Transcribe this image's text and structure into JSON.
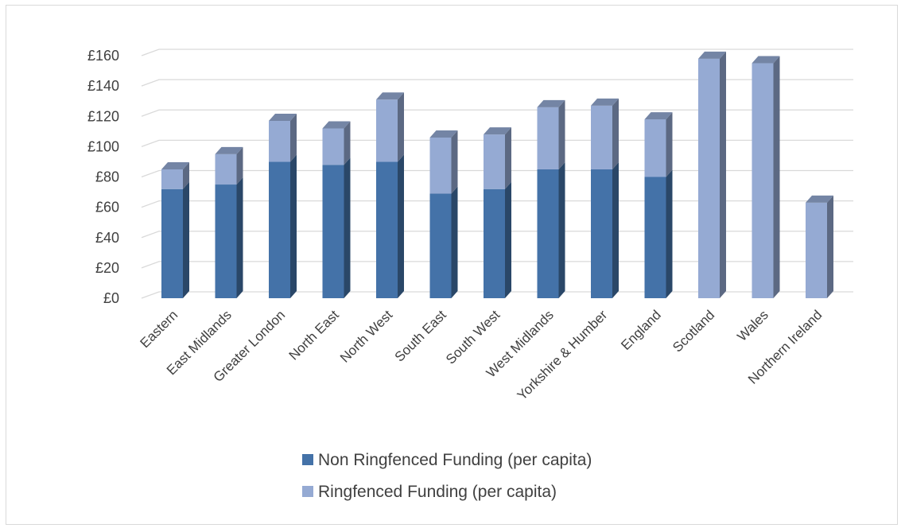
{
  "chart_data": {
    "type": "bar",
    "stacked": true,
    "three_d": true,
    "categories": [
      "Eastern",
      "East Midlands",
      "Greater London",
      "North East",
      "North West",
      "South East",
      "South West",
      "West Midlands",
      "Yorkshire & Humber",
      "England",
      "Scotland",
      "Wales",
      "Northern Ireland"
    ],
    "series": [
      {
        "name": "Non Ringfenced Funding (per capita)",
        "color": "#4472a8",
        "values": [
          72,
          75,
          90,
          88,
          90,
          69,
          72,
          85,
          85,
          80,
          0,
          0,
          0
        ]
      },
      {
        "name": "Ringfenced Funding (per capita)",
        "color": "#95aad3",
        "values": [
          13,
          20,
          27,
          24,
          41,
          37,
          36,
          41,
          42,
          38,
          158,
          155,
          63
        ]
      }
    ],
    "y_ticks": [
      "£0",
      "£20",
      "£40",
      "£60",
      "£80",
      "£100",
      "£120",
      "£140",
      "£160"
    ],
    "ylim": [
      0,
      160
    ],
    "grid": true,
    "legend_position": "bottom"
  }
}
